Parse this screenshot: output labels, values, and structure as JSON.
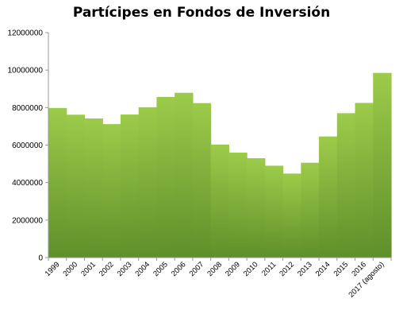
{
  "chart_data": {
    "type": "area",
    "title": "Partícipes en Fondos de Inversión",
    "xlabel": "",
    "ylabel": "",
    "categories": [
      "1999",
      "2000",
      "2001",
      "2002",
      "2003",
      "2004",
      "2005",
      "2006",
      "2007",
      "2008",
      "2009",
      "2010",
      "2011",
      "2012",
      "2013",
      "2014",
      "2015",
      "2016",
      "2017 (agosto)"
    ],
    "values": [
      7980000,
      7620000,
      7420000,
      7120000,
      7630000,
      8020000,
      8570000,
      8790000,
      8240000,
      6030000,
      5600000,
      5300000,
      4900000,
      4480000,
      5060000,
      6460000,
      7700000,
      8250000,
      9850000
    ],
    "ylim": [
      0,
      12000000
    ],
    "yticks": [
      "0",
      "2000000",
      "4000000",
      "6000000",
      "8000000",
      "10000000",
      "12000000"
    ],
    "ytick_values": [
      0,
      2000000,
      4000000,
      6000000,
      8000000,
      10000000,
      12000000
    ],
    "grid": false,
    "colors": {
      "fill_top": "#9ccb4a",
      "fill_bottom": "#5f8f2a",
      "axis": "#999999"
    }
  }
}
